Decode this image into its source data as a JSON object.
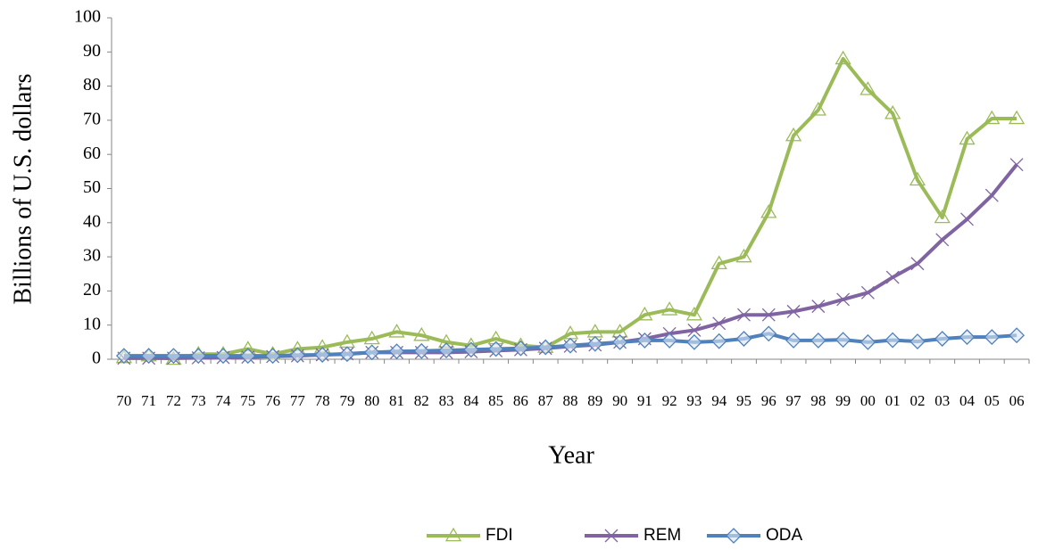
{
  "chart_data": {
    "type": "line",
    "x_label": "Year",
    "y_label": "Billions of U.S. dollars",
    "categories": [
      "70",
      "71",
      "72",
      "73",
      "74",
      "75",
      "76",
      "77",
      "78",
      "79",
      "80",
      "81",
      "82",
      "83",
      "84",
      "85",
      "86",
      "87",
      "88",
      "89",
      "90",
      "91",
      "92",
      "93",
      "94",
      "95",
      "96",
      "97",
      "98",
      "99",
      "00",
      "01",
      "02",
      "03",
      "04",
      "05",
      "06"
    ],
    "series": [
      {
        "name": "FDI",
        "color": "#9bbb59",
        "marker": "triangle",
        "values": [
          0.5,
          1,
          0,
          1.5,
          1.5,
          3,
          1.5,
          3,
          3.5,
          5,
          6,
          8,
          7,
          5,
          4,
          6,
          4,
          3.5,
          7.5,
          8,
          8,
          13,
          14.5,
          13,
          28,
          30,
          43,
          65.5,
          73,
          88,
          79,
          72,
          52.5,
          41.5,
          64.5,
          70.5,
          70.5
        ]
      },
      {
        "name": "REM",
        "color": "#8064a2",
        "marker": "x",
        "values": [
          0.3,
          0.3,
          0.3,
          0.4,
          0.5,
          0.6,
          0.8,
          1,
          1.3,
          1.6,
          2,
          2,
          2,
          2,
          2.2,
          2.5,
          2.8,
          3.2,
          3.8,
          4.2,
          5,
          6,
          7.5,
          8.5,
          10.5,
          13,
          13,
          14,
          15.5,
          17.5,
          19.5,
          24,
          28,
          35,
          41,
          48,
          57
        ]
      },
      {
        "name": "ODA",
        "color": "#4f81bd",
        "marker": "diamond",
        "values": [
          1,
          1,
          1,
          1,
          1,
          1,
          1,
          1.2,
          1.3,
          1.5,
          2,
          2.3,
          2.4,
          2.6,
          2.8,
          3,
          3.2,
          3.5,
          4,
          4.5,
          5,
          5.5,
          5.5,
          5,
          5.3,
          6,
          7.5,
          5.5,
          5.5,
          5.7,
          5,
          5.6,
          5.2,
          6,
          6.5,
          6.5,
          7
        ]
      }
    ],
    "ylim": [
      0,
      100
    ],
    "yticks": [
      0,
      10,
      20,
      30,
      40,
      50,
      60,
      70,
      80,
      90,
      100
    ],
    "grid": false,
    "legend": "bottom"
  }
}
